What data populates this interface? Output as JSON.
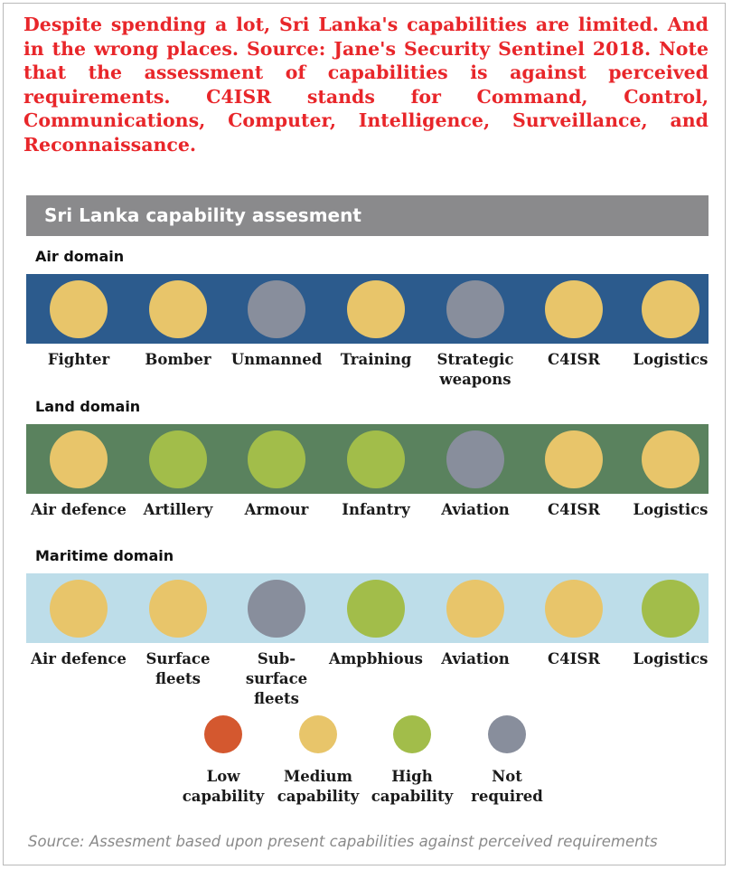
{
  "intro_text": "Despite spending a lot, Sri Lanka's capabilities are limited. And in the wrong places. Source: Jane's Security Sentinel 2018. Note that the assessment of capabilities is against perceived requirements. C4ISR stands for Command, Control, Communications, Computer, Intelligence, Surveillance, and Reconnaissance.",
  "chart_data": {
    "type": "table",
    "title": "Sri Lanka capability assesment",
    "levels": [
      {
        "key": "low",
        "label": "Low\ncapability",
        "color": "#d4582f"
      },
      {
        "key": "medium",
        "label": "Medium\ncapability",
        "color": "#e8c56a"
      },
      {
        "key": "high",
        "label": "High\ncapability",
        "color": "#a2bd4a"
      },
      {
        "key": "not_required",
        "label": "Not\nrequired",
        "color": "#888e9c"
      }
    ],
    "domains": [
      {
        "name": "Air domain",
        "band_color": "#2c5b8d",
        "capabilities": [
          {
            "label": "Fighter",
            "level": "medium"
          },
          {
            "label": "Bomber",
            "level": "medium"
          },
          {
            "label": "Unmanned",
            "level": "not_required"
          },
          {
            "label": "Training",
            "level": "medium"
          },
          {
            "label": "Strategic\nweapons",
            "level": "not_required"
          },
          {
            "label": "C4ISR",
            "level": "medium"
          },
          {
            "label": "Logistics",
            "level": "medium"
          }
        ]
      },
      {
        "name": "Land domain",
        "band_color": "#5a825e",
        "capabilities": [
          {
            "label": "Air defence",
            "level": "medium"
          },
          {
            "label": "Artillery",
            "level": "high"
          },
          {
            "label": "Armour",
            "level": "high"
          },
          {
            "label": "Infantry",
            "level": "high"
          },
          {
            "label": "Aviation",
            "level": "not_required"
          },
          {
            "label": "C4ISR",
            "level": "medium"
          },
          {
            "label": "Logistics",
            "level": "medium"
          }
        ]
      },
      {
        "name": "Maritime domain",
        "band_color": "#bddde9",
        "capabilities": [
          {
            "label": "Air defence",
            "level": "medium"
          },
          {
            "label": "Surface\nfleets",
            "level": "medium"
          },
          {
            "label": "Sub-surface\nfleets",
            "level": "not_required"
          },
          {
            "label": "Ampbhious",
            "level": "high"
          },
          {
            "label": "Aviation",
            "level": "medium"
          },
          {
            "label": "C4ISR",
            "level": "medium"
          },
          {
            "label": "Logistics",
            "level": "high"
          }
        ]
      }
    ],
    "source": "Source: Assesment based upon present capabilities against perceived requirements"
  }
}
